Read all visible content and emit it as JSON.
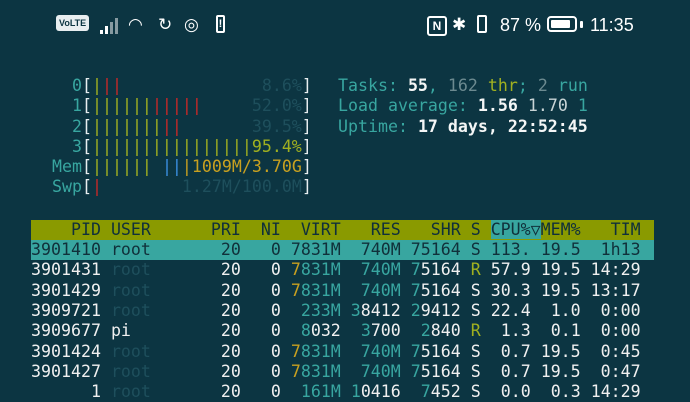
{
  "status_bar": {
    "volte": "VoLTE",
    "battery_percent": "87 %",
    "battery_level": 0.87,
    "time": "11:35",
    "icons": [
      "signal-icon",
      "wifi-icon",
      "sync-icon",
      "app-icon",
      "battery-alert-icon",
      "nfc-icon",
      "bluetooth-icon",
      "vibrate-icon",
      "battery-icon"
    ]
  },
  "meters": {
    "cpu": [
      {
        "label": "0",
        "bars": [
          [
            "green",
            1
          ],
          [
            "red",
            2
          ]
        ],
        "value": "8.6%"
      },
      {
        "label": "1",
        "bars": [
          [
            "green",
            6
          ],
          [
            "red",
            5
          ]
        ],
        "value": "52.0%"
      },
      {
        "label": "2",
        "bars": [
          [
            "green",
            7
          ],
          [
            "red",
            2
          ]
        ],
        "value": "39.5%"
      },
      {
        "label": "3",
        "bars": [
          [
            "green",
            16
          ]
        ],
        "value_main": "95.",
        "value_hot": "4%",
        "value": "95.4%"
      }
    ],
    "mem": {
      "label": "Mem",
      "value": "1009M/3.70G"
    },
    "swp": {
      "label": "Swp",
      "value": "1.27M/100.0M"
    }
  },
  "summary": {
    "tasks_label": "Tasks: ",
    "tasks": "55",
    "threads": "162",
    "thr_label": "thr",
    "running": "2",
    "run_label": "run",
    "load_label": "Load average: ",
    "load1": "1.56",
    "load5": "1.70",
    "load15": "1",
    "uptime_label": "Uptime: ",
    "uptime": "17 days, 22:52:45"
  },
  "colors": {
    "background": "#0c3542",
    "header": "#8a9a00",
    "selection": "#38a6a0"
  },
  "table": {
    "columns": [
      "PID",
      "USER",
      "PRI",
      "NI",
      "VIRT",
      "RES",
      "SHR",
      "S",
      "CPU%",
      "MEM%",
      "TIM"
    ],
    "sort_indicator": "▽",
    "rows": [
      {
        "pid": "3901410",
        "user": "root",
        "pri": "20",
        "ni": "0",
        "virt": "7831M",
        "res": "740M",
        "shr": "75164",
        "s": "S",
        "cpu": "113.",
        "mem": "19.5",
        "time": "1h13",
        "selected": true
      },
      {
        "pid": "3901431",
        "user": "root",
        "pri": "20",
        "ni": "0",
        "virt": "7831M",
        "res": "740M",
        "shr": "75164",
        "s": "R",
        "cpu": "57.9",
        "mem": "19.5",
        "time": "14:29"
      },
      {
        "pid": "3901429",
        "user": "root",
        "pri": "20",
        "ni": "0",
        "virt": "7831M",
        "res": "740M",
        "shr": "75164",
        "s": "S",
        "cpu": "30.3",
        "mem": "19.5",
        "time": "13:17"
      },
      {
        "pid": "3909721",
        "user": "root",
        "pri": "20",
        "ni": "0",
        "virt": "233M",
        "res": "38412",
        "shr": "29412",
        "s": "S",
        "cpu": "22.4",
        "mem": "1.0",
        "time": "0:00"
      },
      {
        "pid": "3909677",
        "user": "pi",
        "pri": "20",
        "ni": "0",
        "virt": "8032",
        "res": "3700",
        "shr": "2840",
        "s": "R",
        "cpu": "1.3",
        "mem": "0.1",
        "time": "0:00"
      },
      {
        "pid": "3901424",
        "user": "root",
        "pri": "20",
        "ni": "0",
        "virt": "7831M",
        "res": "740M",
        "shr": "75164",
        "s": "S",
        "cpu": "0.7",
        "mem": "19.5",
        "time": "0:45"
      },
      {
        "pid": "3901427",
        "user": "root",
        "pri": "20",
        "ni": "0",
        "virt": "7831M",
        "res": "740M",
        "shr": "75164",
        "s": "S",
        "cpu": "0.7",
        "mem": "19.5",
        "time": "0:47"
      },
      {
        "pid": "1",
        "user": "root",
        "pri": "20",
        "ni": "0",
        "virt": "161M",
        "res": "10416",
        "shr": "7452",
        "s": "S",
        "cpu": "0.0",
        "mem": "0.3",
        "time": "14:29"
      }
    ]
  }
}
